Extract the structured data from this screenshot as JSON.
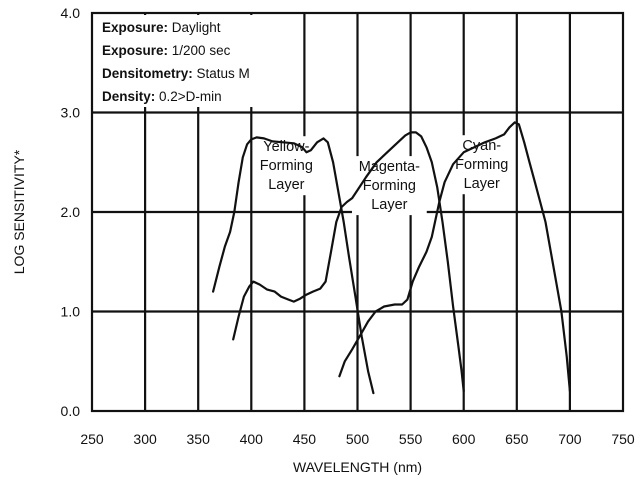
{
  "chart_data": {
    "type": "line",
    "xlabel": "WAVELENGTH (nm)",
    "ylabel": "LOG SENSITIVITY*",
    "xlim": [
      250,
      750
    ],
    "ylim": [
      0,
      4
    ],
    "x_ticks": [
      "250",
      "300",
      "350",
      "400",
      "450",
      "500",
      "550",
      "600",
      "650",
      "700",
      "750"
    ],
    "y_ticks": [
      "0.0",
      "1.0",
      "2.0",
      "3.0",
      "4.0"
    ],
    "grid": true,
    "info_box": [
      {
        "key": "Exposure:",
        "value": "Daylight"
      },
      {
        "key": "Exposure:",
        "value": "1/200 sec"
      },
      {
        "key": "Densitometry:",
        "value": "Status M"
      },
      {
        "key": "Density:",
        "value": "0.2>D-min"
      }
    ],
    "series": [
      {
        "label_lines": [
          "Yellow-",
          "Forming",
          "Layer"
        ],
        "label_at": [
          433,
          2.42
        ],
        "points": [
          [
            364,
            1.2
          ],
          [
            370,
            1.45
          ],
          [
            375,
            1.65
          ],
          [
            380,
            1.8
          ],
          [
            384,
            2.0
          ],
          [
            388,
            2.3
          ],
          [
            392,
            2.55
          ],
          [
            396,
            2.68
          ],
          [
            400,
            2.73
          ],
          [
            405,
            2.75
          ],
          [
            412,
            2.74
          ],
          [
            420,
            2.71
          ],
          [
            430,
            2.7
          ],
          [
            440,
            2.69
          ],
          [
            448,
            2.65
          ],
          [
            452,
            2.6
          ],
          [
            456,
            2.62
          ],
          [
            462,
            2.7
          ],
          [
            468,
            2.74
          ],
          [
            472,
            2.7
          ],
          [
            477,
            2.5
          ],
          [
            482,
            2.2
          ],
          [
            487,
            1.9
          ],
          [
            492,
            1.55
          ],
          [
            498,
            1.15
          ],
          [
            504,
            0.75
          ],
          [
            510,
            0.4
          ],
          [
            515,
            0.18
          ]
        ]
      },
      {
        "label_lines": [
          "Magenta-",
          "Forming",
          "Layer"
        ],
        "label_at": [
          530,
          2.22
        ],
        "points": [
          [
            383,
            0.72
          ],
          [
            388,
            0.95
          ],
          [
            393,
            1.15
          ],
          [
            398,
            1.25
          ],
          [
            402,
            1.3
          ],
          [
            408,
            1.27
          ],
          [
            415,
            1.22
          ],
          [
            422,
            1.2
          ],
          [
            428,
            1.15
          ],
          [
            435,
            1.12
          ],
          [
            440,
            1.1
          ],
          [
            446,
            1.13
          ],
          [
            452,
            1.17
          ],
          [
            458,
            1.2
          ],
          [
            465,
            1.23
          ],
          [
            470,
            1.3
          ],
          [
            475,
            1.6
          ],
          [
            480,
            1.9
          ],
          [
            485,
            2.05
          ],
          [
            490,
            2.1
          ],
          [
            495,
            2.14
          ],
          [
            500,
            2.22
          ],
          [
            508,
            2.35
          ],
          [
            518,
            2.5
          ],
          [
            528,
            2.6
          ],
          [
            538,
            2.7
          ],
          [
            545,
            2.77
          ],
          [
            550,
            2.8
          ],
          [
            555,
            2.8
          ],
          [
            560,
            2.76
          ],
          [
            565,
            2.65
          ],
          [
            570,
            2.5
          ],
          [
            575,
            2.25
          ],
          [
            580,
            1.9
          ],
          [
            585,
            1.5
          ],
          [
            590,
            1.05
          ],
          [
            595,
            0.65
          ],
          [
            598,
            0.4
          ],
          [
            600,
            0.2
          ]
        ]
      },
      {
        "label_lines": [
          "Cyan-",
          "Forming",
          "Layer"
        ],
        "label_at": [
          617,
          2.43
        ],
        "points": [
          [
            483,
            0.35
          ],
          [
            488,
            0.5
          ],
          [
            495,
            0.62
          ],
          [
            502,
            0.75
          ],
          [
            510,
            0.9
          ],
          [
            517,
            1.0
          ],
          [
            525,
            1.05
          ],
          [
            535,
            1.07
          ],
          [
            542,
            1.07
          ],
          [
            547,
            1.12
          ],
          [
            552,
            1.3
          ],
          [
            558,
            1.45
          ],
          [
            565,
            1.6
          ],
          [
            570,
            1.75
          ],
          [
            573,
            1.9
          ],
          [
            577,
            2.1
          ],
          [
            582,
            2.3
          ],
          [
            590,
            2.48
          ],
          [
            600,
            2.6
          ],
          [
            610,
            2.65
          ],
          [
            620,
            2.7
          ],
          [
            630,
            2.74
          ],
          [
            638,
            2.78
          ],
          [
            643,
            2.85
          ],
          [
            648,
            2.9
          ],
          [
            652,
            2.88
          ],
          [
            657,
            2.7
          ],
          [
            662,
            2.5
          ],
          [
            667,
            2.3
          ],
          [
            672,
            2.1
          ],
          [
            677,
            1.9
          ],
          [
            682,
            1.6
          ],
          [
            687,
            1.3
          ],
          [
            692,
            1.0
          ],
          [
            697,
            0.55
          ],
          [
            700,
            0.2
          ]
        ]
      }
    ]
  }
}
